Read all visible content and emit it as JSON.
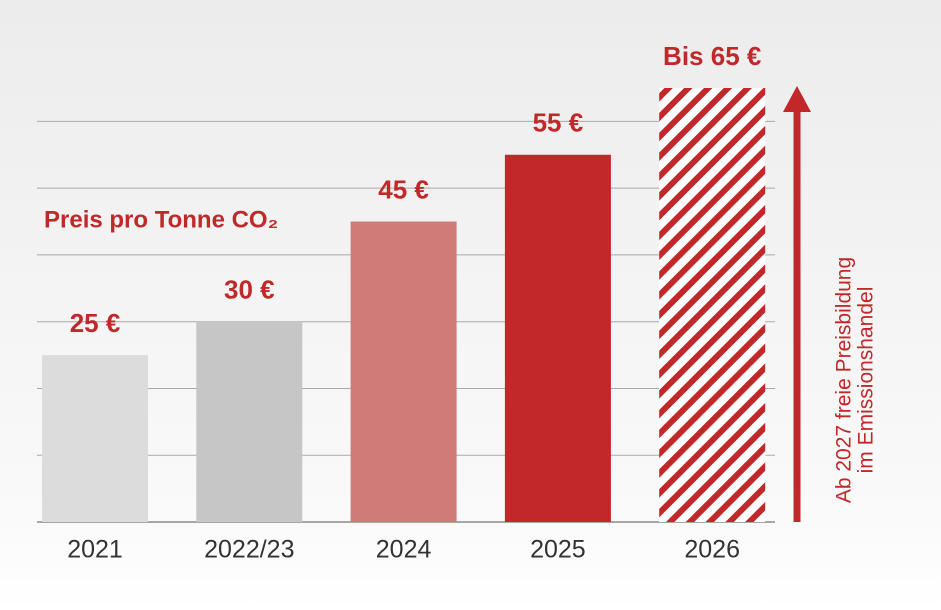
{
  "chart_data": {
    "type": "bar",
    "categories": [
      "2021",
      "2022/23",
      "2024",
      "2025",
      "2026"
    ],
    "values": [
      25,
      30,
      45,
      55,
      65
    ],
    "value_labels": [
      "25 €",
      "30 €",
      "45 €",
      "55 €",
      "Bis 65 €"
    ],
    "colors": [
      "#dcdcdc",
      "#c6c6c6",
      "#d07b77",
      "#c0282a",
      "#c0282a"
    ],
    "fills": [
      "solid",
      "solid",
      "solid",
      "solid",
      "hatched"
    ],
    "ylim": [
      0,
      65
    ],
    "yticks": [
      0,
      10,
      20,
      30,
      40,
      50,
      60
    ],
    "grid": true,
    "annotation": "Preis pro Tonne CO₂",
    "arrow_note": [
      "Ab 2027 freie Preisbildung",
      "im Emissionshandel"
    ]
  }
}
